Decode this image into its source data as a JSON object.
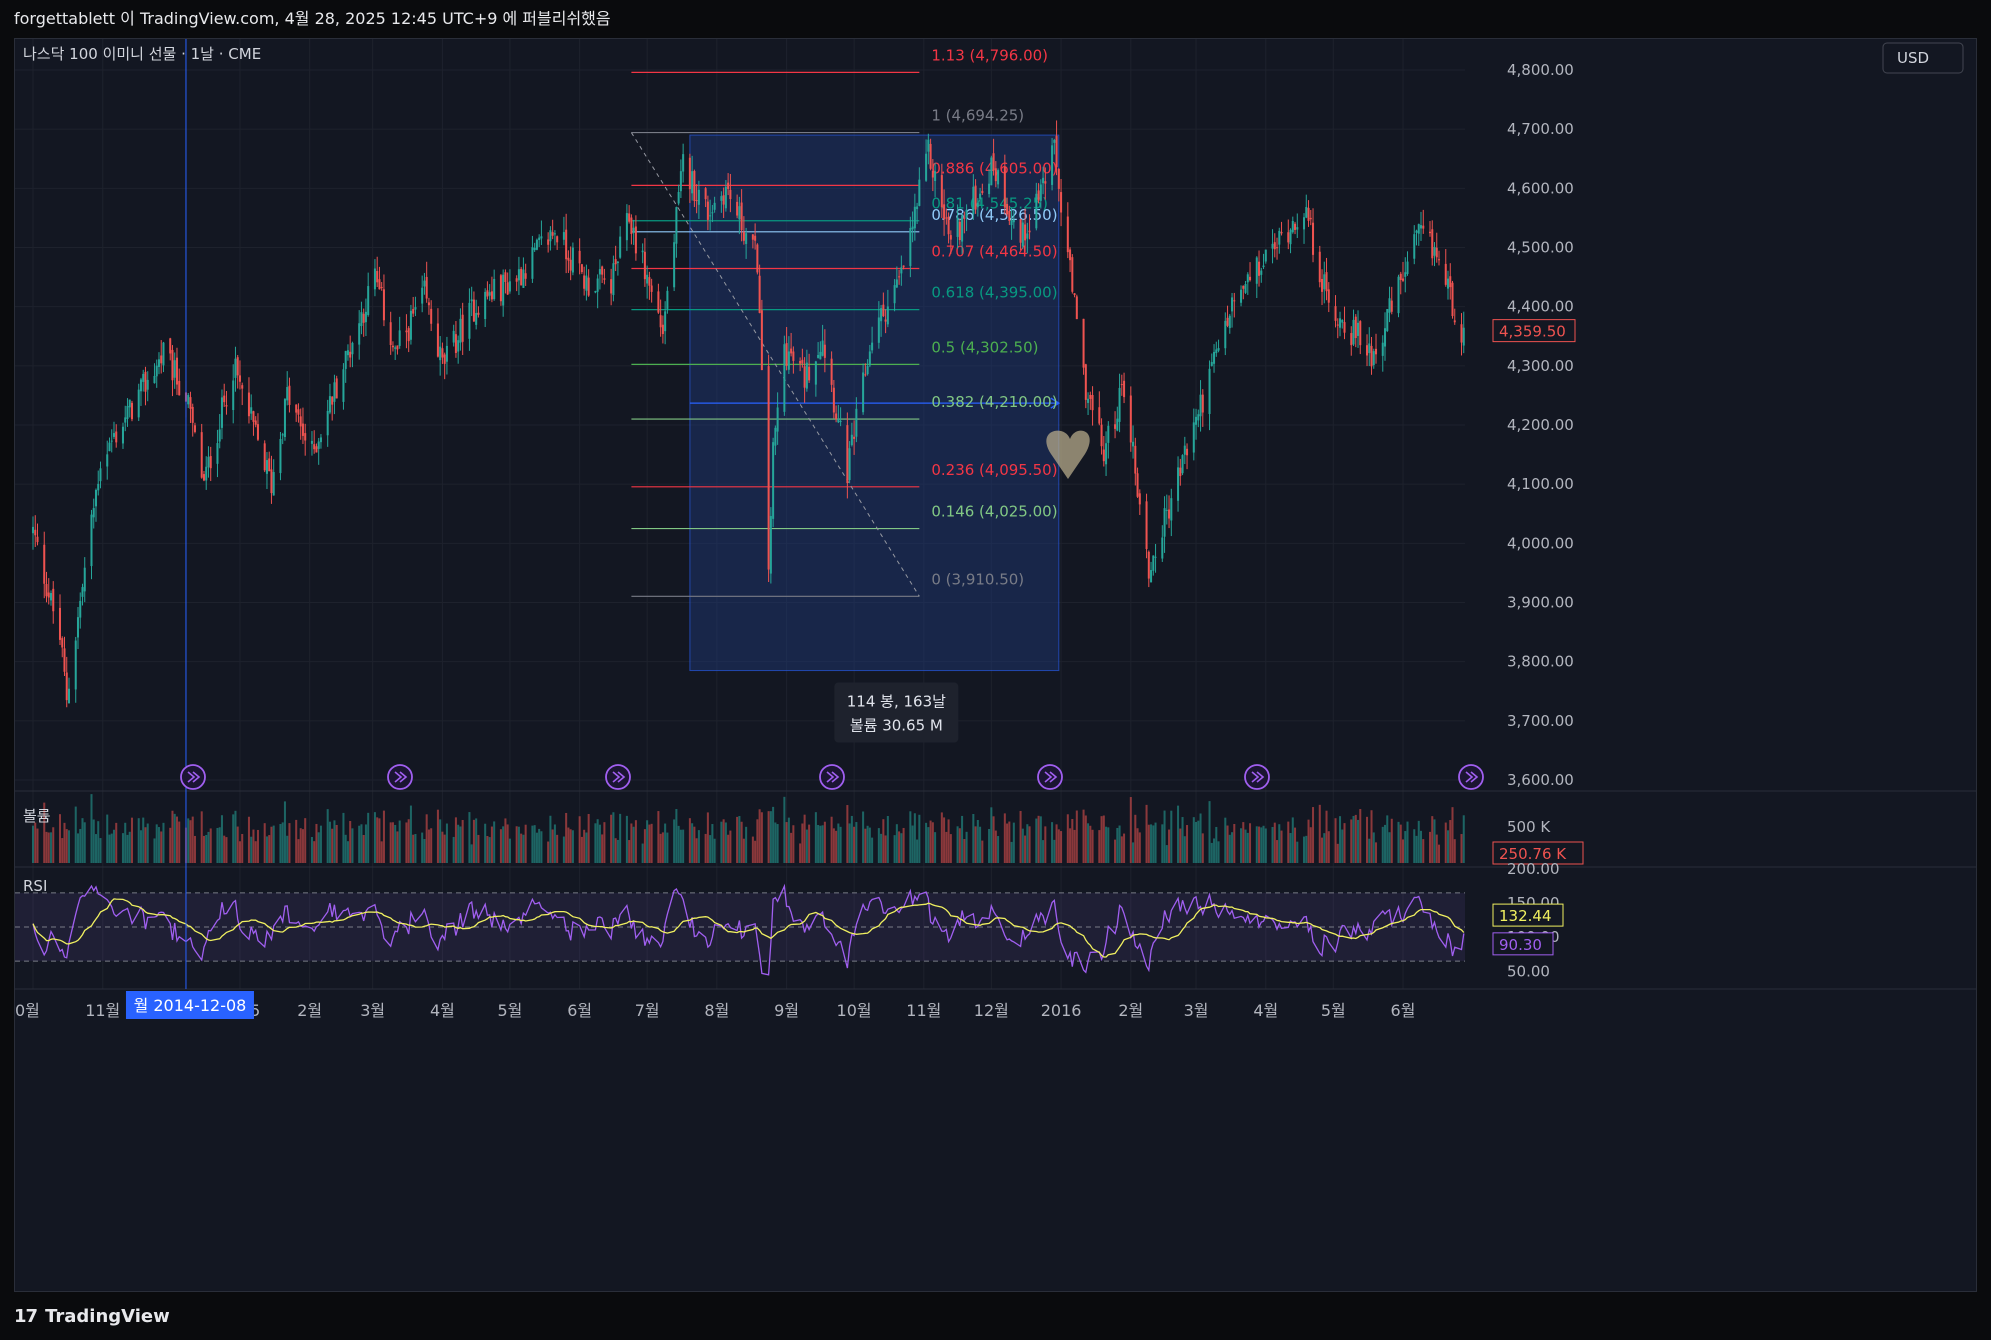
{
  "header": {
    "text": "forgettablett 이 TradingView.com, 4월 28, 2025 12:45 UTC+9 에 퍼블리쉬했음"
  },
  "footer": {
    "brand": "TradingView",
    "logo_icon": "tradingview-logo-icon"
  },
  "colors": {
    "background": "#131722",
    "up": "#26a69a",
    "down": "#ef5350",
    "rsi": "#a05ff0",
    "rsi_ma": "#f0f060",
    "box_fill": "#1e3a7a",
    "grid": "#1e222d"
  },
  "chart_data": {
    "type": "candlestick",
    "symbol_label": "나스닥 100 이미니 선물 · 1날 · CME",
    "currency_label": "USD",
    "ylim": [
      3600,
      4800
    ],
    "y_ticks": [
      "4,800.00",
      "4,700.00",
      "4,600.00",
      "4,500.00",
      "4,400.00",
      "4,300.00",
      "4,200.00",
      "4,100.00",
      "4,000.00",
      "3,900.00",
      "3,800.00",
      "3,700.00",
      "3,600.00"
    ],
    "current_price_label": "4,359.50",
    "x_ticks": [
      "0월",
      "11월",
      "2015",
      "2월",
      "3월",
      "4월",
      "5월",
      "6월",
      "7월",
      "8월",
      "9월",
      "10월",
      "11월",
      "12월",
      "2016",
      "2월",
      "3월",
      "4월",
      "5월",
      "6월"
    ],
    "crosshair_date_label": "월 2014-12-08",
    "price_anchors": [
      [
        "2014-10-01",
        4020
      ],
      [
        "2014-10-13",
        3840
      ],
      [
        "2014-10-16",
        3740
      ],
      [
        "2014-10-31",
        4140
      ],
      [
        "2014-11-28",
        4320
      ],
      [
        "2014-12-08",
        4250
      ],
      [
        "2014-12-16",
        4100
      ],
      [
        "2014-12-29",
        4300
      ],
      [
        "2015-01-15",
        4100
      ],
      [
        "2015-01-22",
        4250
      ],
      [
        "2015-02-02",
        4150
      ],
      [
        "2015-03-02",
        4450
      ],
      [
        "2015-03-11",
        4320
      ],
      [
        "2015-03-24",
        4420
      ],
      [
        "2015-04-01",
        4300
      ],
      [
        "2015-04-15",
        4400
      ],
      [
        "2015-04-22",
        4420
      ],
      [
        "2015-05-04",
        4450
      ],
      [
        "2015-05-21",
        4530
      ],
      [
        "2015-06-04",
        4440
      ],
      [
        "2015-06-15",
        4440
      ],
      [
        "2015-06-23",
        4550
      ],
      [
        "2015-07-08",
        4360
      ],
      [
        "2015-07-17",
        4640
      ],
      [
        "2015-07-28",
        4560
      ],
      [
        "2015-08-05",
        4600
      ],
      [
        "2015-08-19",
        4480
      ],
      [
        "2015-08-24",
        3960
      ],
      [
        "2015-08-26",
        4150
      ],
      [
        "2015-08-31",
        4330
      ],
      [
        "2015-09-09",
        4280
      ],
      [
        "2015-09-17",
        4350
      ],
      [
        "2015-09-28",
        4120
      ],
      [
        "2015-10-09",
        4350
      ],
      [
        "2015-10-22",
        4450
      ],
      [
        "2015-11-03",
        4660
      ],
      [
        "2015-11-13",
        4510
      ],
      [
        "2015-12-02",
        4640
      ],
      [
        "2015-12-14",
        4510
      ],
      [
        "2015-12-29",
        4660
      ],
      [
        "2016-01-11",
        4280
      ],
      [
        "2016-01-20",
        4150
      ],
      [
        "2016-01-29",
        4270
      ],
      [
        "2016-02-09",
        3950
      ],
      [
        "2016-02-25",
        4150
      ],
      [
        "2016-03-17",
        4400
      ],
      [
        "2016-04-01",
        4480
      ],
      [
        "2016-04-18",
        4570
      ],
      [
        "2016-04-29",
        4400
      ],
      [
        "2016-05-19",
        4320
      ],
      [
        "2016-06-08",
        4520
      ],
      [
        "2016-06-16",
        4490
      ],
      [
        "2016-06-27",
        4360
      ],
      [
        "2016-06-30",
        4359.5
      ]
    ],
    "fibonacci": {
      "levels": [
        {
          "label": "1.13 (4,796.00)",
          "value": 4796,
          "color": "#f23645"
        },
        {
          "label": "1 (4,694.25)",
          "value": 4694.25,
          "color": "#787b86"
        },
        {
          "label": "0.886 (4,605.00)",
          "value": 4605,
          "color": "#f23645"
        },
        {
          "label": "0.81 (4,545.25)",
          "value": 4545.25,
          "color": "#089981"
        },
        {
          "label": "0.786 (4,526.50)",
          "value": 4526.5,
          "color": "#90caf9"
        },
        {
          "label": "0.707 (4,464.50)",
          "value": 4464.5,
          "color": "#f23645"
        },
        {
          "label": "0.618 (4,395.00)",
          "value": 4395,
          "color": "#089981"
        },
        {
          "label": "0.5 (4,302.50)",
          "value": 4302.5,
          "color": "#4caf50"
        },
        {
          "label": "0.382 (4,210.00)",
          "value": 4210,
          "color": "#81c784"
        },
        {
          "label": "0.236 (4,095.50)",
          "value": 4095.5,
          "color": "#f23645"
        },
        {
          "label": "0.146 (4,025.00)",
          "value": 4025,
          "color": "#81c784"
        },
        {
          "label": "0 (3,910.50)",
          "value": 3910.5,
          "color": "#787b86"
        }
      ],
      "trend_from": [
        "2015-06-24",
        4694.25
      ],
      "trend_to": [
        "2015-10-30",
        3910.5
      ]
    },
    "date_range_box": {
      "start": "2015-07-20",
      "end": "2015-12-31",
      "top": 4690,
      "bottom": 3785,
      "arrow_level": 4237,
      "label_bars": "114 봉, 163날",
      "label_volume": "볼륨 30.65 M"
    },
    "volume": {
      "label": "볼륨",
      "tick_label": "500 K",
      "last_label": "250.76 K"
    },
    "rsi": {
      "label": "RSI",
      "y_ticks": [
        "200.00",
        "150.00",
        "100.00",
        "50.00"
      ],
      "ylim": [
        30,
        200
      ],
      "band_upper": 165,
      "band_lower": 65,
      "band_mid": 115,
      "last_value_label": "90.30",
      "ma_value_label": "132.44"
    }
  }
}
